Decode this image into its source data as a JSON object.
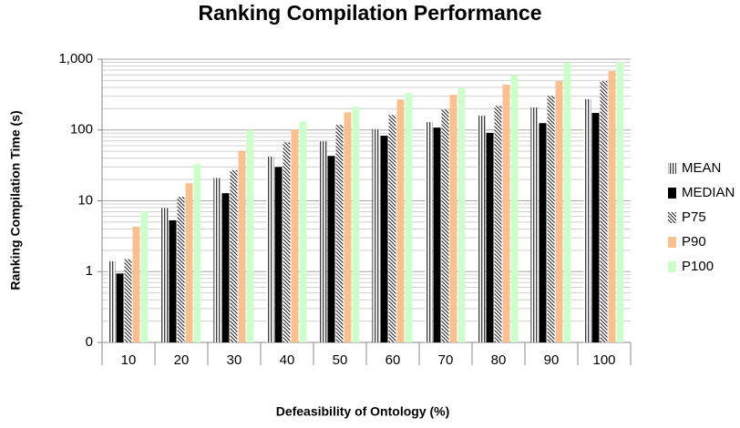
{
  "chart_data": {
    "type": "bar",
    "title": "Ranking Compilation Performance",
    "x_label": "Defeasibility of  Ontology (%)",
    "y_label": "Ranking Compilation Time (s)",
    "categories": [
      "10",
      "20",
      "30",
      "40",
      "50",
      "60",
      "70",
      "80",
      "90",
      "100"
    ],
    "series": [
      {
        "name": "MEAN",
        "color": "#000000",
        "pattern": "vertical",
        "values": [
          1.4,
          7.9,
          21,
          42,
          69,
          103,
          129,
          159,
          208,
          272
        ]
      },
      {
        "name": "MEDIAN",
        "color": "#000000",
        "pattern": "solid",
        "values": [
          0.94,
          5.3,
          12.8,
          30,
          43,
          83,
          108,
          91,
          125,
          174
        ]
      },
      {
        "name": "P75",
        "color": "#000000",
        "pattern": "diagonal",
        "values": [
          1.5,
          11.4,
          27,
          67,
          118,
          163,
          195,
          219,
          303,
          490
        ]
      },
      {
        "name": "P90",
        "color": "#fac090",
        "pattern": "solid",
        "values": [
          4.3,
          17.7,
          51,
          102,
          178,
          270,
          314,
          436,
          490,
          680
        ]
      },
      {
        "name": "P100",
        "color": "#ccffcc",
        "pattern": "solid",
        "values": [
          7.1,
          33,
          100,
          133,
          214,
          333,
          400,
          590,
          890,
          910
        ]
      }
    ],
    "log_scale": true,
    "ylim": [
      0.1,
      1000
    ],
    "yticks": [
      {
        "value": 0.1,
        "label": "0"
      },
      1,
      10,
      100,
      {
        "value": 1000,
        "label": "1,000"
      }
    ],
    "grid": true,
    "minor_grid": true,
    "legend": "right"
  }
}
